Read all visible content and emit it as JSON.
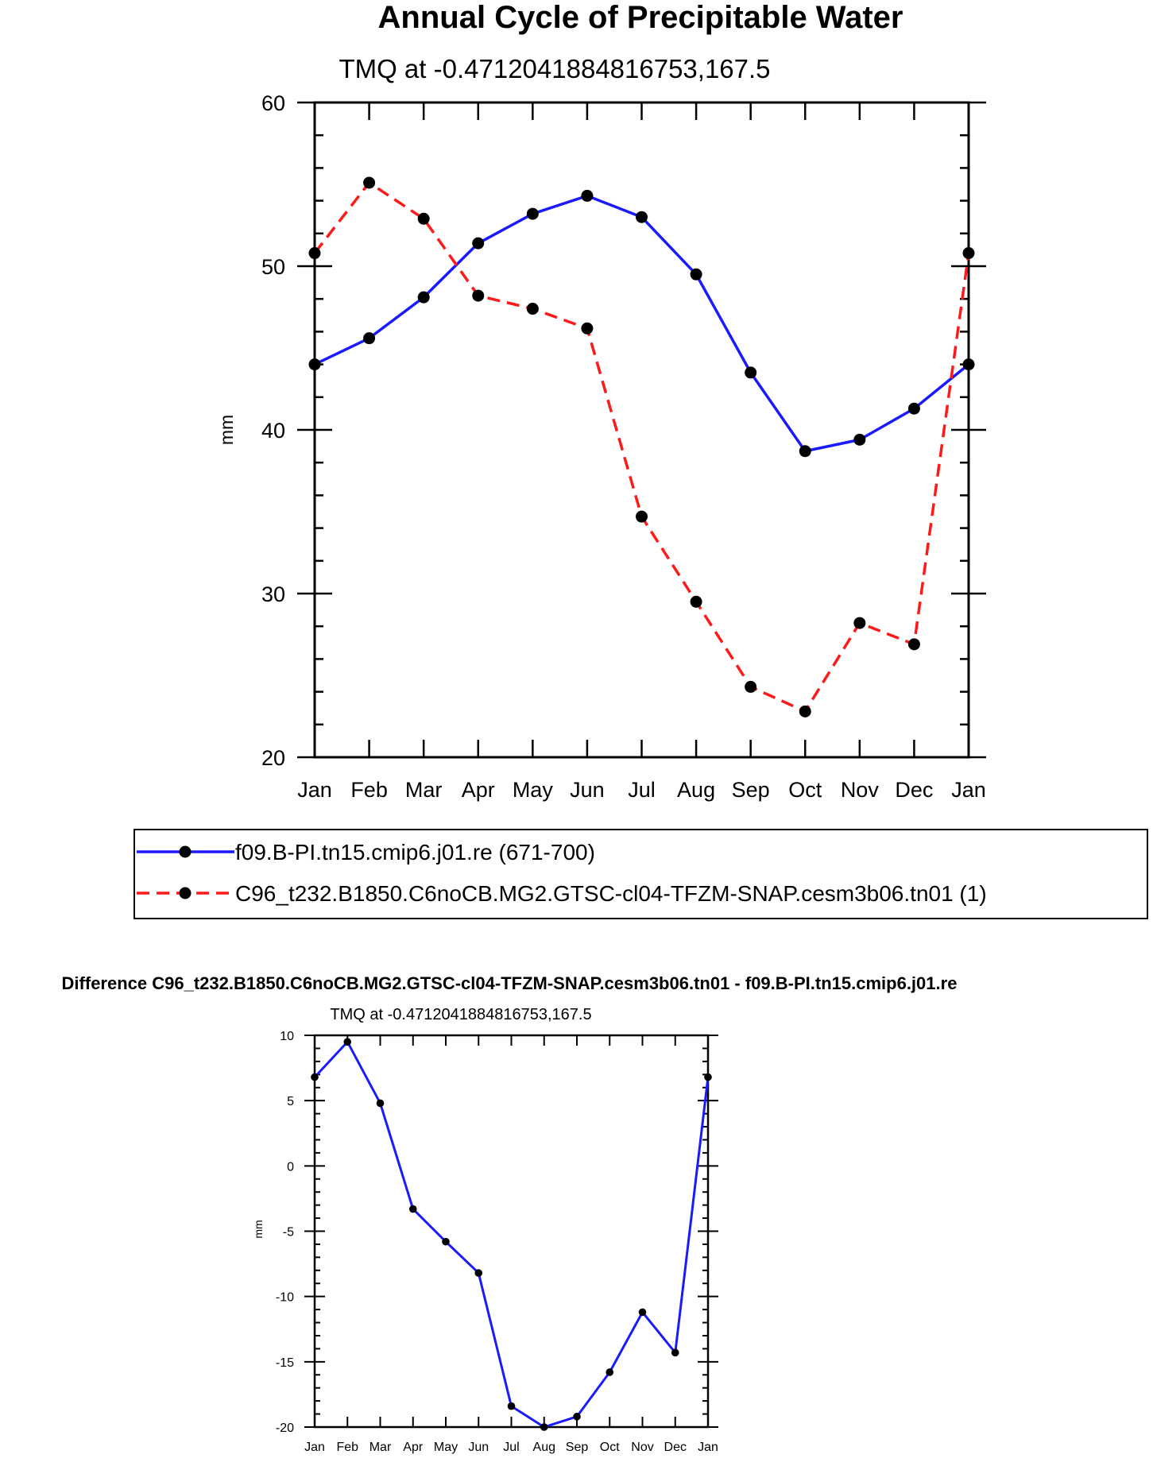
{
  "chart_data": [
    {
      "type": "line",
      "title": "Annual Cycle of Precipitable Water",
      "subtitle": "TMQ at -0.4712041884816753,167.5",
      "xlabel": "",
      "ylabel": "mm",
      "categories": [
        "Jan",
        "Feb",
        "Mar",
        "Apr",
        "May",
        "Jun",
        "Jul",
        "Aug",
        "Sep",
        "Oct",
        "Nov",
        "Dec",
        "Jan"
      ],
      "ylim": [
        20,
        60
      ],
      "yticks": [
        20,
        30,
        40,
        50,
        60
      ],
      "series": [
        {
          "name": "f09.B-PI.tn15.cmip6.j01.re (671-700)",
          "color": "#1a1aff",
          "dash": "solid",
          "values": [
            44.0,
            45.6,
            48.1,
            51.4,
            53.2,
            54.3,
            53.0,
            49.5,
            43.5,
            38.7,
            39.4,
            41.3,
            44.0
          ]
        },
        {
          "name": "C96_t232.B1850.C6noCB.MG2.GTSC-cl04-TFZM-SNAP.cesm3b06.tn01 (1)",
          "color": "#ff1a1a",
          "dash": "dashed",
          "values": [
            50.8,
            55.1,
            52.9,
            48.2,
            47.4,
            46.2,
            34.7,
            29.5,
            24.3,
            22.8,
            28.2,
            26.9,
            50.8
          ]
        }
      ],
      "legend": "below"
    },
    {
      "type": "line",
      "title": "Difference C96_t232.B1850.C6noCB.MG2.GTSC-cl04-TFZM-SNAP.cesm3b06.tn01 - f09.B-PI.tn15.cmip6.j01.re",
      "subtitle": "TMQ at -0.4712041884816753,167.5",
      "xlabel": "",
      "ylabel": "mm",
      "categories": [
        "Jan",
        "Feb",
        "Mar",
        "Apr",
        "May",
        "Jun",
        "Jul",
        "Aug",
        "Sep",
        "Oct",
        "Nov",
        "Dec",
        "Jan"
      ],
      "ylim": [
        -20,
        10
      ],
      "yticks": [
        -20,
        -15,
        -10,
        -5,
        0,
        5,
        10
      ],
      "series": [
        {
          "name": "Difference",
          "color": "#1a1aff",
          "dash": "solid",
          "values": [
            6.8,
            9.5,
            4.8,
            -3.3,
            -5.8,
            -8.2,
            -18.4,
            -20.0,
            -19.2,
            -15.8,
            -11.2,
            -14.3,
            6.8
          ]
        }
      ]
    }
  ]
}
